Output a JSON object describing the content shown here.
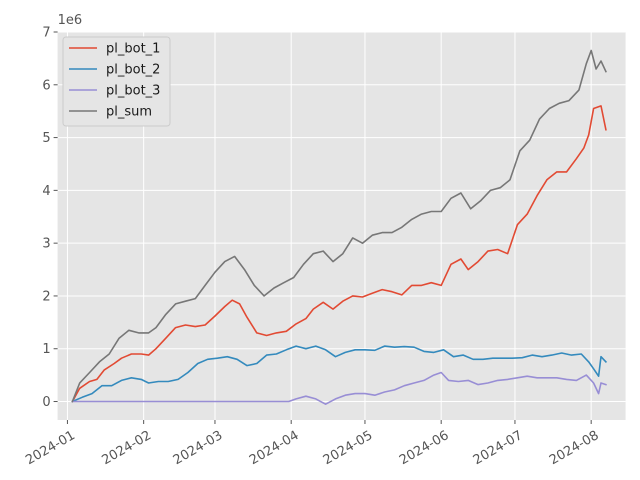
{
  "chart_data": {
    "type": "line",
    "title": "",
    "xlabel": "",
    "ylabel": "",
    "y_offset_label": "1e6",
    "grid": true,
    "legend_position": "top-left",
    "ylim": [
      -0.35,
      7.0
    ],
    "xlim": [
      "2023-12-28",
      "2024-08-15"
    ],
    "x_ticks": [
      {
        "date": "2024-01-01",
        "label": "2024-01"
      },
      {
        "date": "2024-02-01",
        "label": "2024-02"
      },
      {
        "date": "2024-03-01",
        "label": "2024-03"
      },
      {
        "date": "2024-04-01",
        "label": "2024-04"
      },
      {
        "date": "2024-05-01",
        "label": "2024-05"
      },
      {
        "date": "2024-06-01",
        "label": "2024-06"
      },
      {
        "date": "2024-07-01",
        "label": "2024-07"
      },
      {
        "date": "2024-08-01",
        "label": "2024-08"
      }
    ],
    "y_ticks": [
      0,
      1,
      2,
      3,
      4,
      5,
      6,
      7
    ],
    "series": [
      {
        "name": "pl_bot_1",
        "color": "#E24A33",
        "points": [
          [
            "2024-01-03",
            0.0
          ],
          [
            "2024-01-06",
            0.25
          ],
          [
            "2024-01-10",
            0.38
          ],
          [
            "2024-01-13",
            0.42
          ],
          [
            "2024-01-16",
            0.6
          ],
          [
            "2024-01-20",
            0.72
          ],
          [
            "2024-01-23",
            0.82
          ],
          [
            "2024-01-27",
            0.9
          ],
          [
            "2024-01-31",
            0.9
          ],
          [
            "2024-02-03",
            0.88
          ],
          [
            "2024-02-06",
            1.0
          ],
          [
            "2024-02-10",
            1.2
          ],
          [
            "2024-02-14",
            1.4
          ],
          [
            "2024-02-18",
            1.45
          ],
          [
            "2024-02-22",
            1.42
          ],
          [
            "2024-02-26",
            1.45
          ],
          [
            "2024-03-01",
            1.62
          ],
          [
            "2024-03-05",
            1.8
          ],
          [
            "2024-03-08",
            1.92
          ],
          [
            "2024-03-11",
            1.85
          ],
          [
            "2024-03-14",
            1.6
          ],
          [
            "2024-03-18",
            1.3
          ],
          [
            "2024-03-22",
            1.25
          ],
          [
            "2024-03-26",
            1.3
          ],
          [
            "2024-03-30",
            1.33
          ],
          [
            "2024-04-03",
            1.47
          ],
          [
            "2024-04-07",
            1.57
          ],
          [
            "2024-04-10",
            1.75
          ],
          [
            "2024-04-14",
            1.88
          ],
          [
            "2024-04-18",
            1.75
          ],
          [
            "2024-04-22",
            1.9
          ],
          [
            "2024-04-26",
            2.0
          ],
          [
            "2024-04-30",
            1.98
          ],
          [
            "2024-05-04",
            2.05
          ],
          [
            "2024-05-08",
            2.12
          ],
          [
            "2024-05-12",
            2.08
          ],
          [
            "2024-05-16",
            2.02
          ],
          [
            "2024-05-20",
            2.2
          ],
          [
            "2024-05-24",
            2.2
          ],
          [
            "2024-05-28",
            2.25
          ],
          [
            "2024-06-01",
            2.2
          ],
          [
            "2024-06-05",
            2.6
          ],
          [
            "2024-06-09",
            2.7
          ],
          [
            "2024-06-12",
            2.5
          ],
          [
            "2024-06-16",
            2.65
          ],
          [
            "2024-06-20",
            2.85
          ],
          [
            "2024-06-24",
            2.88
          ],
          [
            "2024-06-28",
            2.8
          ],
          [
            "2024-07-02",
            3.35
          ],
          [
            "2024-07-06",
            3.55
          ],
          [
            "2024-07-10",
            3.9
          ],
          [
            "2024-07-14",
            4.2
          ],
          [
            "2024-07-18",
            4.35
          ],
          [
            "2024-07-22",
            4.35
          ],
          [
            "2024-07-26",
            4.6
          ],
          [
            "2024-07-29",
            4.8
          ],
          [
            "2024-07-31",
            5.05
          ],
          [
            "2024-08-02",
            5.55
          ],
          [
            "2024-08-05",
            5.6
          ],
          [
            "2024-08-07",
            5.15
          ]
        ]
      },
      {
        "name": "pl_bot_2",
        "color": "#348ABD",
        "points": [
          [
            "2024-01-03",
            0.0
          ],
          [
            "2024-01-07",
            0.08
          ],
          [
            "2024-01-11",
            0.15
          ],
          [
            "2024-01-15",
            0.3
          ],
          [
            "2024-01-19",
            0.3
          ],
          [
            "2024-01-23",
            0.4
          ],
          [
            "2024-01-27",
            0.45
          ],
          [
            "2024-01-31",
            0.42
          ],
          [
            "2024-02-03",
            0.35
          ],
          [
            "2024-02-07",
            0.38
          ],
          [
            "2024-02-11",
            0.38
          ],
          [
            "2024-02-15",
            0.42
          ],
          [
            "2024-02-19",
            0.55
          ],
          [
            "2024-02-23",
            0.72
          ],
          [
            "2024-02-27",
            0.8
          ],
          [
            "2024-03-02",
            0.82
          ],
          [
            "2024-03-06",
            0.85
          ],
          [
            "2024-03-10",
            0.8
          ],
          [
            "2024-03-14",
            0.68
          ],
          [
            "2024-03-18",
            0.72
          ],
          [
            "2024-03-22",
            0.88
          ],
          [
            "2024-03-26",
            0.9
          ],
          [
            "2024-03-30",
            0.98
          ],
          [
            "2024-04-03",
            1.05
          ],
          [
            "2024-04-07",
            1.0
          ],
          [
            "2024-04-11",
            1.05
          ],
          [
            "2024-04-15",
            0.98
          ],
          [
            "2024-04-19",
            0.85
          ],
          [
            "2024-04-23",
            0.93
          ],
          [
            "2024-04-27",
            0.98
          ],
          [
            "2024-05-01",
            0.98
          ],
          [
            "2024-05-05",
            0.97
          ],
          [
            "2024-05-09",
            1.05
          ],
          [
            "2024-05-13",
            1.03
          ],
          [
            "2024-05-17",
            1.04
          ],
          [
            "2024-05-21",
            1.03
          ],
          [
            "2024-05-25",
            0.95
          ],
          [
            "2024-05-29",
            0.93
          ],
          [
            "2024-06-02",
            0.98
          ],
          [
            "2024-06-06",
            0.85
          ],
          [
            "2024-06-10",
            0.88
          ],
          [
            "2024-06-14",
            0.8
          ],
          [
            "2024-06-18",
            0.8
          ],
          [
            "2024-06-22",
            0.82
          ],
          [
            "2024-06-26",
            0.82
          ],
          [
            "2024-06-30",
            0.82
          ],
          [
            "2024-07-04",
            0.83
          ],
          [
            "2024-07-08",
            0.88
          ],
          [
            "2024-07-12",
            0.85
          ],
          [
            "2024-07-16",
            0.88
          ],
          [
            "2024-07-20",
            0.92
          ],
          [
            "2024-07-24",
            0.88
          ],
          [
            "2024-07-28",
            0.9
          ],
          [
            "2024-07-31",
            0.75
          ],
          [
            "2024-08-02",
            0.62
          ],
          [
            "2024-08-04",
            0.48
          ],
          [
            "2024-08-05",
            0.85
          ],
          [
            "2024-08-07",
            0.75
          ]
        ]
      },
      {
        "name": "pl_bot_3",
        "color": "#988ED5",
        "points": [
          [
            "2024-01-03",
            0.0
          ],
          [
            "2024-02-01",
            0.0
          ],
          [
            "2024-03-01",
            0.0
          ],
          [
            "2024-03-31",
            0.0
          ],
          [
            "2024-04-03",
            0.05
          ],
          [
            "2024-04-07",
            0.1
          ],
          [
            "2024-04-11",
            0.05
          ],
          [
            "2024-04-15",
            -0.05
          ],
          [
            "2024-04-19",
            0.05
          ],
          [
            "2024-04-23",
            0.12
          ],
          [
            "2024-04-27",
            0.15
          ],
          [
            "2024-05-01",
            0.15
          ],
          [
            "2024-05-05",
            0.12
          ],
          [
            "2024-05-09",
            0.18
          ],
          [
            "2024-05-13",
            0.22
          ],
          [
            "2024-05-17",
            0.3
          ],
          [
            "2024-05-21",
            0.35
          ],
          [
            "2024-05-25",
            0.4
          ],
          [
            "2024-05-29",
            0.5
          ],
          [
            "2024-06-01",
            0.55
          ],
          [
            "2024-06-04",
            0.4
          ],
          [
            "2024-06-08",
            0.38
          ],
          [
            "2024-06-12",
            0.4
          ],
          [
            "2024-06-16",
            0.32
          ],
          [
            "2024-06-20",
            0.35
          ],
          [
            "2024-06-24",
            0.4
          ],
          [
            "2024-06-28",
            0.42
          ],
          [
            "2024-07-02",
            0.45
          ],
          [
            "2024-07-06",
            0.48
          ],
          [
            "2024-07-10",
            0.45
          ],
          [
            "2024-07-14",
            0.45
          ],
          [
            "2024-07-18",
            0.45
          ],
          [
            "2024-07-22",
            0.42
          ],
          [
            "2024-07-26",
            0.4
          ],
          [
            "2024-07-30",
            0.5
          ],
          [
            "2024-08-02",
            0.35
          ],
          [
            "2024-08-04",
            0.15
          ],
          [
            "2024-08-05",
            0.35
          ],
          [
            "2024-08-07",
            0.32
          ]
        ]
      },
      {
        "name": "pl_sum",
        "color": "#777777",
        "points": [
          [
            "2024-01-03",
            0.0
          ],
          [
            "2024-01-06",
            0.35
          ],
          [
            "2024-01-10",
            0.55
          ],
          [
            "2024-01-14",
            0.75
          ],
          [
            "2024-01-18",
            0.9
          ],
          [
            "2024-01-22",
            1.2
          ],
          [
            "2024-01-26",
            1.35
          ],
          [
            "2024-01-30",
            1.3
          ],
          [
            "2024-02-03",
            1.3
          ],
          [
            "2024-02-06",
            1.4
          ],
          [
            "2024-02-10",
            1.65
          ],
          [
            "2024-02-14",
            1.85
          ],
          [
            "2024-02-18",
            1.9
          ],
          [
            "2024-02-22",
            1.95
          ],
          [
            "2024-02-26",
            2.2
          ],
          [
            "2024-03-01",
            2.45
          ],
          [
            "2024-03-05",
            2.65
          ],
          [
            "2024-03-09",
            2.75
          ],
          [
            "2024-03-13",
            2.5
          ],
          [
            "2024-03-17",
            2.2
          ],
          [
            "2024-03-21",
            2.0
          ],
          [
            "2024-03-25",
            2.15
          ],
          [
            "2024-03-29",
            2.25
          ],
          [
            "2024-04-02",
            2.35
          ],
          [
            "2024-04-06",
            2.6
          ],
          [
            "2024-04-10",
            2.8
          ],
          [
            "2024-04-14",
            2.85
          ],
          [
            "2024-04-18",
            2.65
          ],
          [
            "2024-04-22",
            2.8
          ],
          [
            "2024-04-26",
            3.1
          ],
          [
            "2024-04-30",
            3.0
          ],
          [
            "2024-05-04",
            3.15
          ],
          [
            "2024-05-08",
            3.2
          ],
          [
            "2024-05-12",
            3.2
          ],
          [
            "2024-05-16",
            3.3
          ],
          [
            "2024-05-20",
            3.45
          ],
          [
            "2024-05-24",
            3.55
          ],
          [
            "2024-05-28",
            3.6
          ],
          [
            "2024-06-01",
            3.6
          ],
          [
            "2024-06-05",
            3.85
          ],
          [
            "2024-06-09",
            3.95
          ],
          [
            "2024-06-13",
            3.65
          ],
          [
            "2024-06-17",
            3.8
          ],
          [
            "2024-06-21",
            4.0
          ],
          [
            "2024-06-25",
            4.05
          ],
          [
            "2024-06-29",
            4.2
          ],
          [
            "2024-07-03",
            4.75
          ],
          [
            "2024-07-07",
            4.95
          ],
          [
            "2024-07-11",
            5.35
          ],
          [
            "2024-07-15",
            5.55
          ],
          [
            "2024-07-19",
            5.65
          ],
          [
            "2024-07-23",
            5.7
          ],
          [
            "2024-07-27",
            5.9
          ],
          [
            "2024-07-30",
            6.4
          ],
          [
            "2024-08-01",
            6.65
          ],
          [
            "2024-08-03",
            6.3
          ],
          [
            "2024-08-05",
            6.45
          ],
          [
            "2024-08-07",
            6.25
          ]
        ]
      }
    ]
  }
}
